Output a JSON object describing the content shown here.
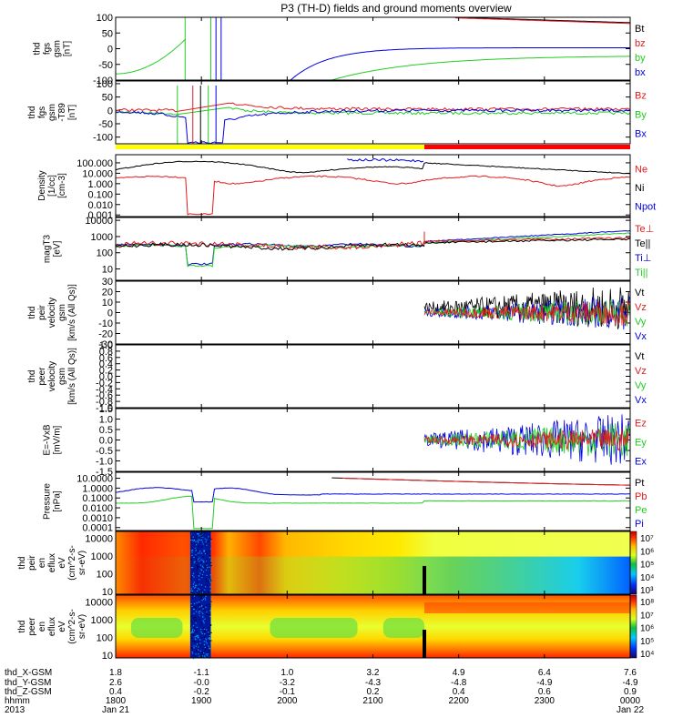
{
  "title": "P3 (TH-D) fields and ground moments overview",
  "colors": {
    "black": "#000000",
    "red": "#e41a1c",
    "green": "#22cc22",
    "blue": "#0000e0",
    "yellow": "#ffff00",
    "bar_red": "#ff0000"
  },
  "chart_data": [
    {
      "type": "line",
      "name": "fgs-bfield",
      "ylabel_lines": [
        "thd",
        "fgs",
        "gsm",
        "[nT]"
      ],
      "yticks": [
        "100",
        "50",
        "0",
        "-50",
        "-100"
      ],
      "ylim": [
        -100,
        100
      ],
      "legend": [
        {
          "label": "Bt",
          "color": "black"
        },
        {
          "label": "bz",
          "color": "red"
        },
        {
          "label": "by",
          "color": "green"
        },
        {
          "label": "bx",
          "color": "blue"
        }
      ]
    },
    {
      "type": "line",
      "name": "fgs-bfield-2",
      "ylabel_lines": [
        "thd",
        "fgs",
        "gsm",
        "-T89",
        "[nT]"
      ],
      "yticks": [
        "100",
        "50",
        "0",
        "-50",
        "-100"
      ],
      "ylim": [
        -125,
        110
      ],
      "legend": [
        {
          "label": "Bz",
          "color": "red"
        },
        {
          "label": "By",
          "color": "green"
        },
        {
          "label": "Bx",
          "color": "blue"
        }
      ]
    },
    {
      "type": "line",
      "name": "density",
      "ylabel_lines": [
        "Density",
        "[1/cc]",
        "[cm-3]"
      ],
      "yticks": [
        "100.000",
        "10.000",
        "1.000",
        "0.100",
        "0.010",
        "0.001"
      ],
      "ylim": [
        0.0007,
        600
      ],
      "scale": "log",
      "legend": [
        {
          "label": "Ne",
          "color": "red"
        },
        {
          "label": "Ni",
          "color": "black"
        },
        {
          "label": "Npot",
          "color": "blue"
        }
      ]
    },
    {
      "type": "line",
      "name": "temperature",
      "ylabel_lines": [
        "magT3",
        "[eV]"
      ],
      "yticks": [
        "10000",
        "1000",
        "100",
        "10"
      ],
      "ylim": [
        2,
        15000
      ],
      "scale": "log",
      "legend": [
        {
          "label": "Te⊥",
          "color": "red"
        },
        {
          "label": "Te||",
          "color": "black"
        },
        {
          "label": "Ti⊥",
          "color": "blue"
        },
        {
          "label": "Ti||",
          "color": "green"
        }
      ]
    },
    {
      "type": "line",
      "name": "peir-velocity",
      "ylabel_lines": [
        "thd",
        "peir",
        "velocity",
        "gsm",
        "[km/s (All Qs)]"
      ],
      "yticks": [
        "30",
        "20",
        "10",
        "0",
        "-10",
        "-20",
        "-30"
      ],
      "ylim": [
        -30,
        30
      ],
      "legend": [
        {
          "label": "Vt",
          "color": "black"
        },
        {
          "label": "Vz",
          "color": "red"
        },
        {
          "label": "Vy",
          "color": "green"
        },
        {
          "label": "Vx",
          "color": "blue"
        }
      ]
    },
    {
      "type": "line",
      "name": "peer-velocity",
      "ylabel_lines": [
        "thd",
        "peer",
        "velocity",
        "gsm",
        "[km/s (All Qs)]"
      ],
      "yticks": [
        "1.0",
        "0.8",
        "0.6",
        "0.4",
        "0.2",
        "0.0",
        "-0.2",
        "-0.4",
        "-0.6",
        "-0.8",
        "-1.0"
      ],
      "ylim": [
        -1,
        1
      ],
      "legend": [
        {
          "label": "Vt",
          "color": "black"
        },
        {
          "label": "Vz",
          "color": "red"
        },
        {
          "label": "Vy",
          "color": "green"
        },
        {
          "label": "Vx",
          "color": "blue"
        }
      ]
    },
    {
      "type": "line",
      "name": "efield",
      "ylabel_lines": [
        "E=-VxB",
        "[mV/m]"
      ],
      "yticks": [
        "1.5",
        "1.0",
        "0.5",
        "0.0",
        "-0.5",
        "-1.0",
        "-1.5"
      ],
      "ylim": [
        -1.5,
        1.5
      ],
      "legend": [
        {
          "label": "Ez",
          "color": "red"
        },
        {
          "label": "Ey",
          "color": "green"
        },
        {
          "label": "Ex",
          "color": "blue"
        }
      ]
    },
    {
      "type": "line",
      "name": "pressure",
      "ylabel_lines": [
        "Pressure",
        "[nPa]"
      ],
      "yticks": [
        "10.0000",
        "1.0000",
        "0.1000",
        "0.0100",
        "0.0010",
        "0.0001"
      ],
      "ylim": [
        5e-05,
        40
      ],
      "scale": "log",
      "legend": [
        {
          "label": "Pt",
          "color": "black"
        },
        {
          "label": "Pb",
          "color": "red"
        },
        {
          "label": "Pe",
          "color": "green"
        },
        {
          "label": "Pi",
          "color": "blue"
        }
      ]
    },
    {
      "type": "heatmap",
      "name": "peir-spectrogram",
      "ylabel_lines": [
        "thd",
        "peir",
        "en",
        "eflux",
        "eV",
        "(cm^2-s-",
        "sr-eV)"
      ],
      "yticks": [
        "10000",
        "1000",
        "100",
        "10"
      ],
      "ylim": [
        7,
        25000
      ],
      "scale": "log",
      "colorbar_ticks": [
        "10⁷",
        "10⁶",
        "10⁵",
        "10⁴",
        "10³"
      ]
    },
    {
      "type": "heatmap",
      "name": "peer-spectrogram",
      "ylabel_lines": [
        "thd",
        "peer",
        "en",
        "eflux",
        "eV",
        "(cm^2-s-",
        "sr-eV)"
      ],
      "yticks": [
        "10000",
        "1000",
        "100",
        "10"
      ],
      "ylim": [
        7,
        25000
      ],
      "scale": "log",
      "colorbar_ticks": [
        "10⁸",
        "10⁷",
        "10⁶",
        "10⁵",
        "10⁴"
      ]
    }
  ],
  "x_axis": {
    "row_labels": [
      "thd_X-GSM",
      "thd_Y-GSM",
      "thd_Z-GSM",
      "hhmm",
      "2013"
    ],
    "columns": [
      {
        "values": [
          "1.8",
          "2.6",
          "0.4",
          "1800",
          "Jan 21"
        ]
      },
      {
        "values": [
          "-1.1",
          "-0.0",
          "-0.2",
          "1900",
          ""
        ]
      },
      {
        "values": [
          "1.0",
          "-3.2",
          "-0.1",
          "2000",
          ""
        ]
      },
      {
        "values": [
          "3.2",
          "-4.3",
          "0.2",
          "2100",
          ""
        ]
      },
      {
        "values": [
          "4.9",
          "-4.8",
          "0.4",
          "2200",
          ""
        ]
      },
      {
        "values": [
          "6.4",
          "-4.9",
          "0.6",
          "2300",
          ""
        ]
      },
      {
        "values": [
          "7.6",
          "-4.9",
          "0.9",
          "0000",
          "Jan 22"
        ]
      }
    ]
  }
}
